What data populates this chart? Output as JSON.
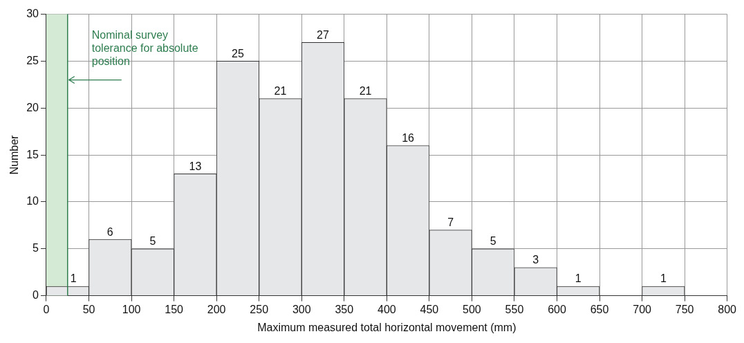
{
  "chart_data": {
    "type": "histogram",
    "xlabel": "Maximum measured total horizontal movement (mm)",
    "ylabel": "Number",
    "bins": [
      0,
      50,
      100,
      150,
      200,
      250,
      300,
      350,
      400,
      450,
      500,
      550,
      600,
      650,
      700,
      750,
      800
    ],
    "values": [
      1,
      6,
      5,
      13,
      25,
      21,
      27,
      21,
      16,
      7,
      5,
      3,
      1,
      0,
      1,
      0
    ],
    "value_labels": [
      "1",
      "6",
      "5",
      "13",
      "25",
      "21",
      "27",
      "21",
      "16",
      "7",
      "5",
      "3",
      "1",
      null,
      "1",
      null
    ],
    "color": "#e6e7e9",
    "xlim": [
      0,
      800
    ],
    "xticks": [
      0,
      50,
      100,
      150,
      200,
      250,
      300,
      350,
      400,
      450,
      500,
      550,
      600,
      650,
      700,
      750,
      800
    ],
    "ylim": [
      0,
      30
    ],
    "yticks": [
      0,
      5,
      10,
      15,
      20,
      25,
      30
    ],
    "grid": true,
    "legend": false,
    "ref_lines": [
      {
        "axis": "x",
        "value": 25,
        "color": "#2e7d4f"
      }
    ],
    "bands": [
      {
        "axis": "x",
        "from": 0,
        "to": 25,
        "color": "#d5ead5"
      }
    ],
    "annotations": [
      {
        "text": "Nominal survey tolerance for absolute position",
        "x": 25,
        "y": 23
      }
    ]
  }
}
